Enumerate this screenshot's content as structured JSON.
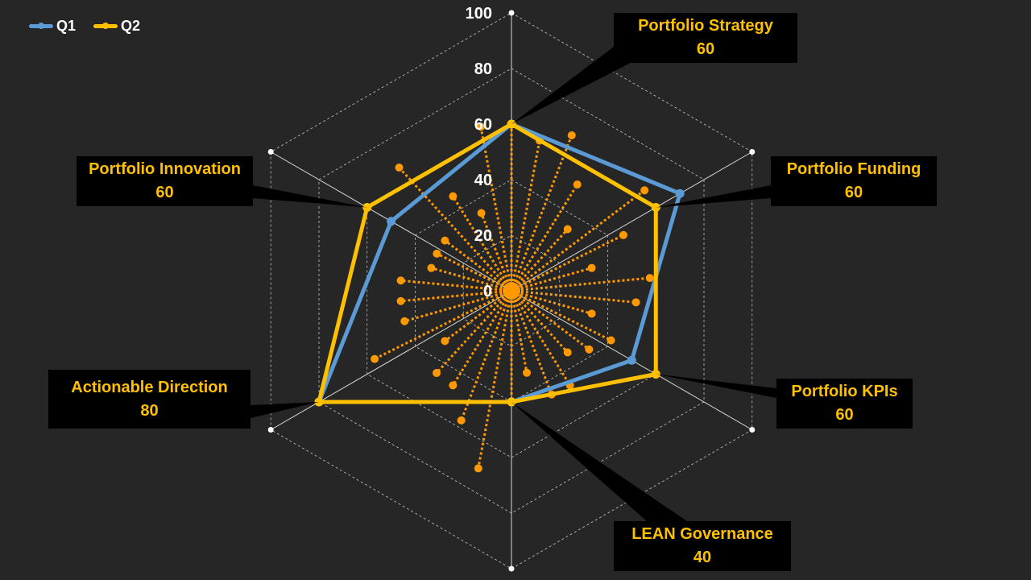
{
  "chart_data": {
    "type": "radar",
    "scale": [
      0,
      100
    ],
    "ticks": [
      "0",
      "20",
      "40",
      "60",
      "80",
      "100"
    ],
    "tick_values": [
      0,
      20,
      40,
      60,
      80,
      100
    ],
    "categories": [
      "Portfolio Strategy",
      "Portfolio Funding",
      "Portfolio KPIs",
      "LEAN Governance",
      "Actionable Direction",
      "Portfolio Innovation"
    ],
    "series": [
      {
        "name": "Q1",
        "color": "#5b9bd5",
        "values": [
          60,
          70,
          50,
          40,
          80,
          50
        ]
      },
      {
        "name": "Q2",
        "color": "#ffc000",
        "values": [
          60,
          60,
          60,
          40,
          80,
          60
        ]
      }
    ],
    "callouts": [
      {
        "category": "Portfolio Strategy",
        "value": "60"
      },
      {
        "category": "Portfolio Funding",
        "value": "60"
      },
      {
        "category": "Portfolio KPIs",
        "value": "60"
      },
      {
        "category": "LEAN Governance",
        "value": "40"
      },
      {
        "category": "Actionable Direction",
        "value": "80"
      },
      {
        "category": "Portfolio Innovation",
        "value": "60"
      }
    ],
    "dotted_spokes": {
      "color": "#ff9900",
      "values": [
        60,
        55,
        60,
        45,
        30,
        60,
        45,
        30,
        50,
        45,
        30,
        40,
        35,
        30,
        40,
        40,
        30,
        40,
        65,
        50,
        40,
        40,
        30,
        55,
        40,
        40,
        40,
        30,
        30,
        30,
        60,
        40,
        30,
        60
      ]
    },
    "legend": "top-left"
  }
}
